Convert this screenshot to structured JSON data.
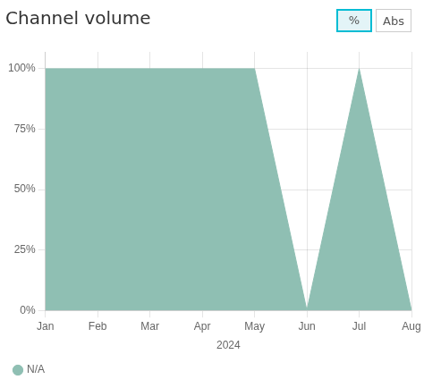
{
  "chart_data": {
    "type": "area",
    "title": "Channel volume",
    "x_label": "2024",
    "categories": [
      "Jan",
      "Feb",
      "Mar",
      "Apr",
      "May",
      "Jun",
      "Jul",
      "Aug"
    ],
    "series": [
      {
        "name": "N/A",
        "color": "#8fbfb3",
        "values": [
          100,
          100,
          100,
          100,
          100,
          0,
          100,
          0
        ]
      }
    ],
    "ylim": [
      0,
      107
    ],
    "yticks": [
      {
        "value": 0,
        "label": "0%"
      },
      {
        "value": 25,
        "label": "25%"
      },
      {
        "value": 50,
        "label": "50%"
      },
      {
        "value": 75,
        "label": "75%"
      },
      {
        "value": 100,
        "label": "100%"
      }
    ],
    "grid": true,
    "legend": "bottom",
    "annotations": [
      "%",
      "Abs"
    ]
  }
}
